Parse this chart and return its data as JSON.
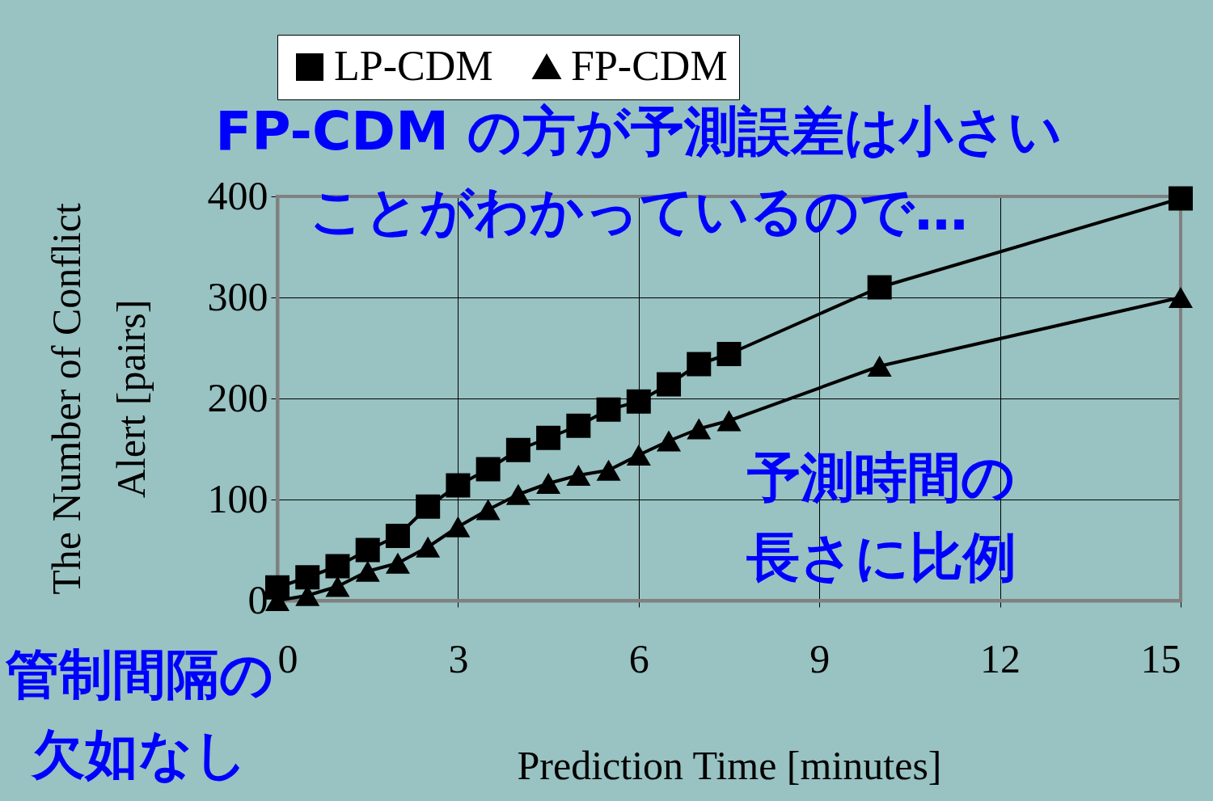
{
  "chart_data": {
    "type": "line",
    "xlabel": "Prediction Time [minutes]",
    "ylabel": "The Number of Conflict\nAlert [pairs]",
    "x": [
      0,
      0.5,
      1,
      1.5,
      2,
      2.5,
      3,
      3.5,
      4,
      4.5,
      5,
      5.5,
      6,
      6.5,
      7,
      7.5,
      10,
      15
    ],
    "series": [
      {
        "name": "LP-CDM",
        "color": "#000000",
        "marker": "square",
        "values": [
          13,
          23,
          34,
          50,
          64,
          93,
          114,
          130,
          149,
          161,
          173,
          189,
          197,
          214,
          234,
          244,
          310,
          398
        ]
      },
      {
        "name": "FP-CDM",
        "color": "#000000",
        "marker": "triangle",
        "values": [
          0,
          5,
          14,
          29,
          37,
          53,
          73,
          90,
          105,
          116,
          124,
          129,
          144,
          158,
          170,
          178,
          232,
          300
        ]
      }
    ],
    "xlim": [
      0,
      15
    ],
    "xticks": [
      0,
      3,
      6,
      9,
      12,
      15
    ],
    "ylim": [
      0,
      400
    ],
    "yticks": [
      0,
      100,
      200,
      300,
      400
    ],
    "grid": true,
    "legend": "top",
    "annotations": [
      "FP-CDM の方が予測誤差は小さいことがわかっているので…",
      "予測時間の長さに比例",
      "管制間隔の欠如なし"
    ]
  }
}
